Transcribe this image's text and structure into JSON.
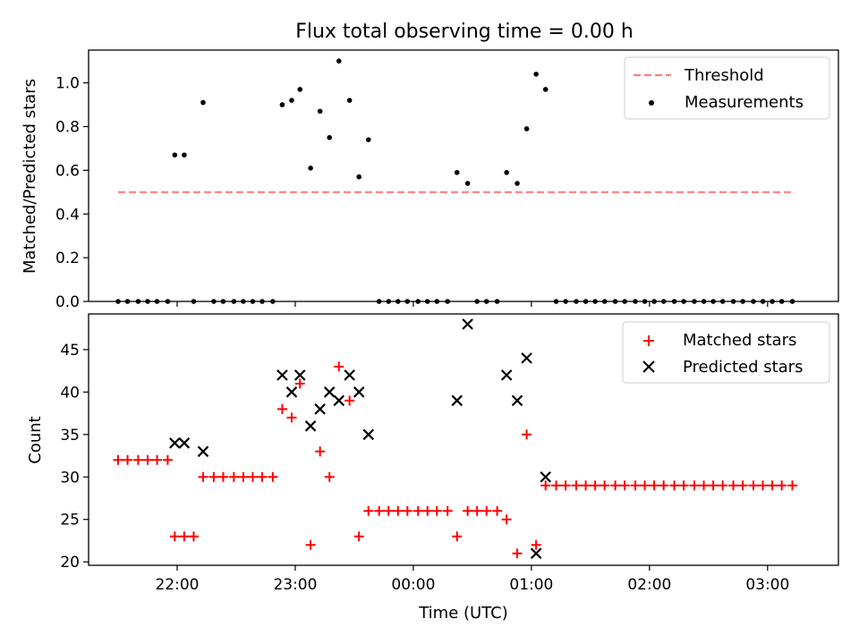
{
  "figure": {
    "title": "Flux total observing time = 0.00 h"
  },
  "colors": {
    "threshold": "#ff7f7f",
    "measurement": "#000000",
    "matched": "#ff0000",
    "predicted": "#000000"
  },
  "chart_data": [
    {
      "type": "scatter",
      "ylabel": "Matched/Predicted stars",
      "ylim": [
        0,
        1.15
      ],
      "yticks": [
        0.0,
        0.2,
        0.4,
        0.6,
        0.8,
        1.0
      ],
      "ytick_labels": [
        "0.0",
        "0.2",
        "0.4",
        "0.6",
        "0.8",
        "1.0"
      ],
      "xlim": [
        21.25,
        27.6
      ],
      "grid": false,
      "legend": [
        "Threshold",
        "Measurements"
      ],
      "legend_position": "top-right",
      "series": [
        {
          "name": "Threshold",
          "kind": "dashed-line",
          "x": [
            21.5,
            27.23
          ],
          "y": [
            0.5,
            0.5
          ]
        },
        {
          "name": "Measurements",
          "kind": "dot",
          "points": [
            [
              21.5,
              0.0
            ],
            [
              21.58,
              0.0
            ],
            [
              21.67,
              0.0
            ],
            [
              21.75,
              0.0
            ],
            [
              21.83,
              0.0
            ],
            [
              21.92,
              0.0
            ],
            [
              21.98,
              0.67
            ],
            [
              22.06,
              0.67
            ],
            [
              22.14,
              0.0
            ],
            [
              22.22,
              0.91
            ],
            [
              22.31,
              0.0
            ],
            [
              22.39,
              0.0
            ],
            [
              22.48,
              0.0
            ],
            [
              22.56,
              0.0
            ],
            [
              22.64,
              0.0
            ],
            [
              22.72,
              0.0
            ],
            [
              22.81,
              0.0
            ],
            [
              22.89,
              0.9
            ],
            [
              22.97,
              0.92
            ],
            [
              23.04,
              0.97
            ],
            [
              23.13,
              0.61
            ],
            [
              23.21,
              0.87
            ],
            [
              23.29,
              0.75
            ],
            [
              23.37,
              1.1
            ],
            [
              23.46,
              0.92
            ],
            [
              23.54,
              0.57
            ],
            [
              23.62,
              0.74
            ],
            [
              23.71,
              0.0
            ],
            [
              23.79,
              0.0
            ],
            [
              23.87,
              0.0
            ],
            [
              23.95,
              0.0
            ],
            [
              24.04,
              0.0
            ],
            [
              24.12,
              0.0
            ],
            [
              24.2,
              0.0
            ],
            [
              24.29,
              0.0
            ],
            [
              24.37,
              0.59
            ],
            [
              24.46,
              0.54
            ],
            [
              24.54,
              0.0
            ],
            [
              24.62,
              0.0
            ],
            [
              24.71,
              0.0
            ],
            [
              24.79,
              0.59
            ],
            [
              24.88,
              0.54
            ],
            [
              24.96,
              0.79
            ],
            [
              25.04,
              1.04
            ],
            [
              25.12,
              0.97
            ],
            [
              25.21,
              0.0
            ],
            [
              25.29,
              0.0
            ],
            [
              25.38,
              0.0
            ],
            [
              25.46,
              0.0
            ],
            [
              25.54,
              0.0
            ],
            [
              25.62,
              0.0
            ],
            [
              25.71,
              0.0
            ],
            [
              25.79,
              0.0
            ],
            [
              25.88,
              0.0
            ],
            [
              25.96,
              0.0
            ],
            [
              26.04,
              0.0
            ],
            [
              26.12,
              0.0
            ],
            [
              26.21,
              0.0
            ],
            [
              26.29,
              0.0
            ],
            [
              26.38,
              0.0
            ],
            [
              26.46,
              0.0
            ],
            [
              26.54,
              0.0
            ],
            [
              26.62,
              0.0
            ],
            [
              26.71,
              0.0
            ],
            [
              26.79,
              0.0
            ],
            [
              26.88,
              0.0
            ],
            [
              26.96,
              0.0
            ],
            [
              27.04,
              0.0
            ],
            [
              27.12,
              0.0
            ],
            [
              27.21,
              0.0
            ]
          ]
        }
      ]
    },
    {
      "type": "scatter",
      "ylabel": "Count",
      "xlabel": "Time (UTC)",
      "ylim": [
        19.6,
        49.2
      ],
      "yticks": [
        20,
        25,
        30,
        35,
        40,
        45
      ],
      "ytick_labels": [
        "20",
        "25",
        "30",
        "35",
        "40",
        "45"
      ],
      "xlim": [
        21.25,
        27.6
      ],
      "xticks": [
        22,
        23,
        24,
        25,
        26,
        27
      ],
      "xtick_labels": [
        "22:00",
        "23:00",
        "00:00",
        "01:00",
        "02:00",
        "03:00"
      ],
      "grid": false,
      "legend": [
        "Matched stars",
        "Predicted stars"
      ],
      "legend_position": "top-right",
      "series": [
        {
          "name": "Matched stars",
          "kind": "plus",
          "points": [
            [
              21.5,
              32
            ],
            [
              21.58,
              32
            ],
            [
              21.67,
              32
            ],
            [
              21.75,
              32
            ],
            [
              21.83,
              32
            ],
            [
              21.92,
              32
            ],
            [
              21.98,
              23
            ],
            [
              22.06,
              23
            ],
            [
              22.14,
              23
            ],
            [
              22.22,
              30
            ],
            [
              22.31,
              30
            ],
            [
              22.39,
              30
            ],
            [
              22.48,
              30
            ],
            [
              22.56,
              30
            ],
            [
              22.64,
              30
            ],
            [
              22.72,
              30
            ],
            [
              22.81,
              30
            ],
            [
              22.89,
              38
            ],
            [
              22.97,
              37
            ],
            [
              23.04,
              41
            ],
            [
              23.13,
              22
            ],
            [
              23.21,
              33
            ],
            [
              23.29,
              30
            ],
            [
              23.37,
              43
            ],
            [
              23.46,
              39
            ],
            [
              23.54,
              23
            ],
            [
              23.62,
              26
            ],
            [
              23.71,
              26
            ],
            [
              23.79,
              26
            ],
            [
              23.87,
              26
            ],
            [
              23.95,
              26
            ],
            [
              24.04,
              26
            ],
            [
              24.12,
              26
            ],
            [
              24.2,
              26
            ],
            [
              24.29,
              26
            ],
            [
              24.37,
              23
            ],
            [
              24.46,
              26
            ],
            [
              24.54,
              26
            ],
            [
              24.62,
              26
            ],
            [
              24.71,
              26
            ],
            [
              24.79,
              25
            ],
            [
              24.88,
              21
            ],
            [
              24.96,
              35
            ],
            [
              25.04,
              22
            ],
            [
              25.12,
              29
            ],
            [
              25.21,
              29
            ],
            [
              25.29,
              29
            ],
            [
              25.38,
              29
            ],
            [
              25.46,
              29
            ],
            [
              25.54,
              29
            ],
            [
              25.62,
              29
            ],
            [
              25.71,
              29
            ],
            [
              25.79,
              29
            ],
            [
              25.88,
              29
            ],
            [
              25.96,
              29
            ],
            [
              26.04,
              29
            ],
            [
              26.12,
              29
            ],
            [
              26.21,
              29
            ],
            [
              26.29,
              29
            ],
            [
              26.38,
              29
            ],
            [
              26.46,
              29
            ],
            [
              26.54,
              29
            ],
            [
              26.62,
              29
            ],
            [
              26.71,
              29
            ],
            [
              26.79,
              29
            ],
            [
              26.88,
              29
            ],
            [
              26.96,
              29
            ],
            [
              27.04,
              29
            ],
            [
              27.12,
              29
            ],
            [
              27.21,
              29
            ]
          ]
        },
        {
          "name": "Predicted stars",
          "kind": "x",
          "points": [
            [
              21.98,
              34
            ],
            [
              22.06,
              34
            ],
            [
              22.22,
              33
            ],
            [
              22.89,
              42
            ],
            [
              22.97,
              40
            ],
            [
              23.04,
              42
            ],
            [
              23.13,
              36
            ],
            [
              23.21,
              38
            ],
            [
              23.29,
              40
            ],
            [
              23.37,
              39
            ],
            [
              23.46,
              42
            ],
            [
              23.54,
              40
            ],
            [
              23.62,
              35
            ],
            [
              24.37,
              39
            ],
            [
              24.46,
              48
            ],
            [
              24.79,
              42
            ],
            [
              24.88,
              39
            ],
            [
              24.96,
              44
            ],
            [
              25.04,
              21
            ],
            [
              25.12,
              30
            ]
          ]
        }
      ]
    }
  ]
}
